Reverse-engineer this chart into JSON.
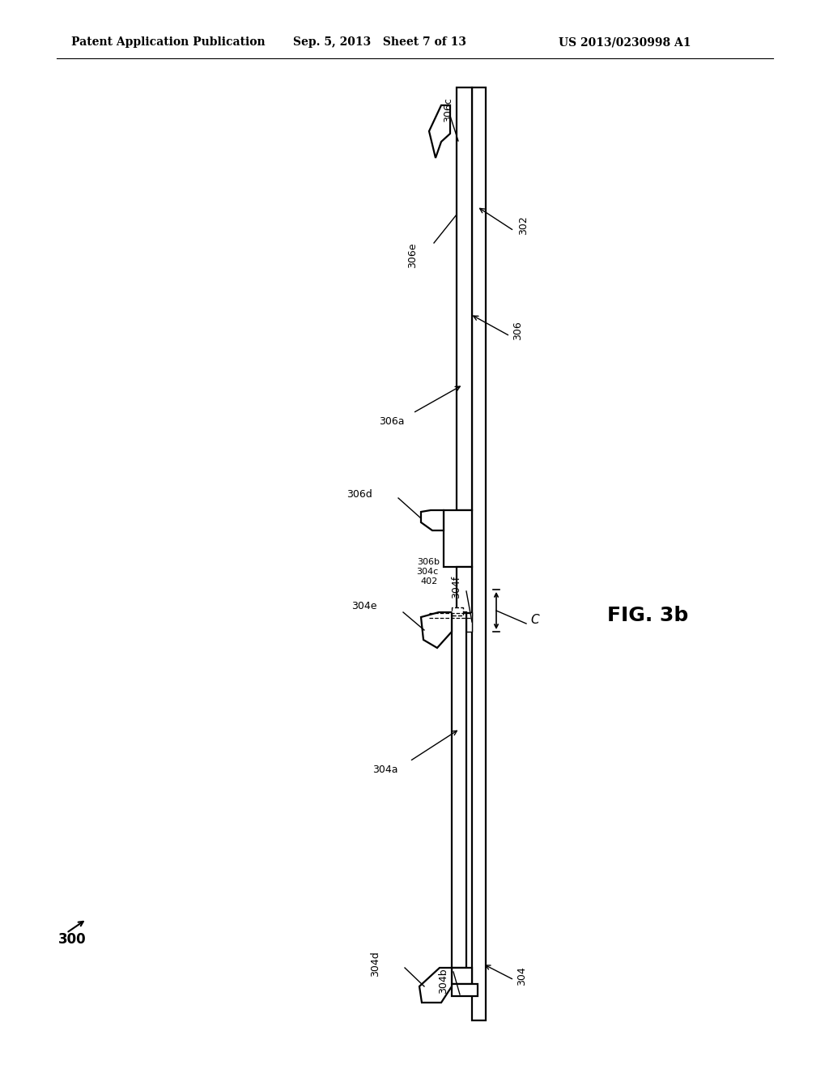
{
  "background_color": "#ffffff",
  "header_left": "Patent Application Publication",
  "header_center": "Sep. 5, 2013   Sheet 7 of 13",
  "header_right": "US 2013/0230998 A1",
  "fig_label": "FIG. 3b",
  "ref_300": "300",
  "ref_302": "302",
  "ref_304": "304",
  "ref_304a": "304a",
  "ref_304b": "304b",
  "ref_304c": "304c",
  "ref_304d": "304d",
  "ref_304e": "304e",
  "ref_304f": "304f",
  "ref_306": "306",
  "ref_306a": "306a",
  "ref_306b": "306b",
  "ref_306c": "306c",
  "ref_306d": "306d",
  "ref_306e": "306e",
  "ref_402": "402",
  "ref_C": "C",
  "lw_thin": 1.0,
  "lw_med": 1.6,
  "lw_thick": 2.2
}
